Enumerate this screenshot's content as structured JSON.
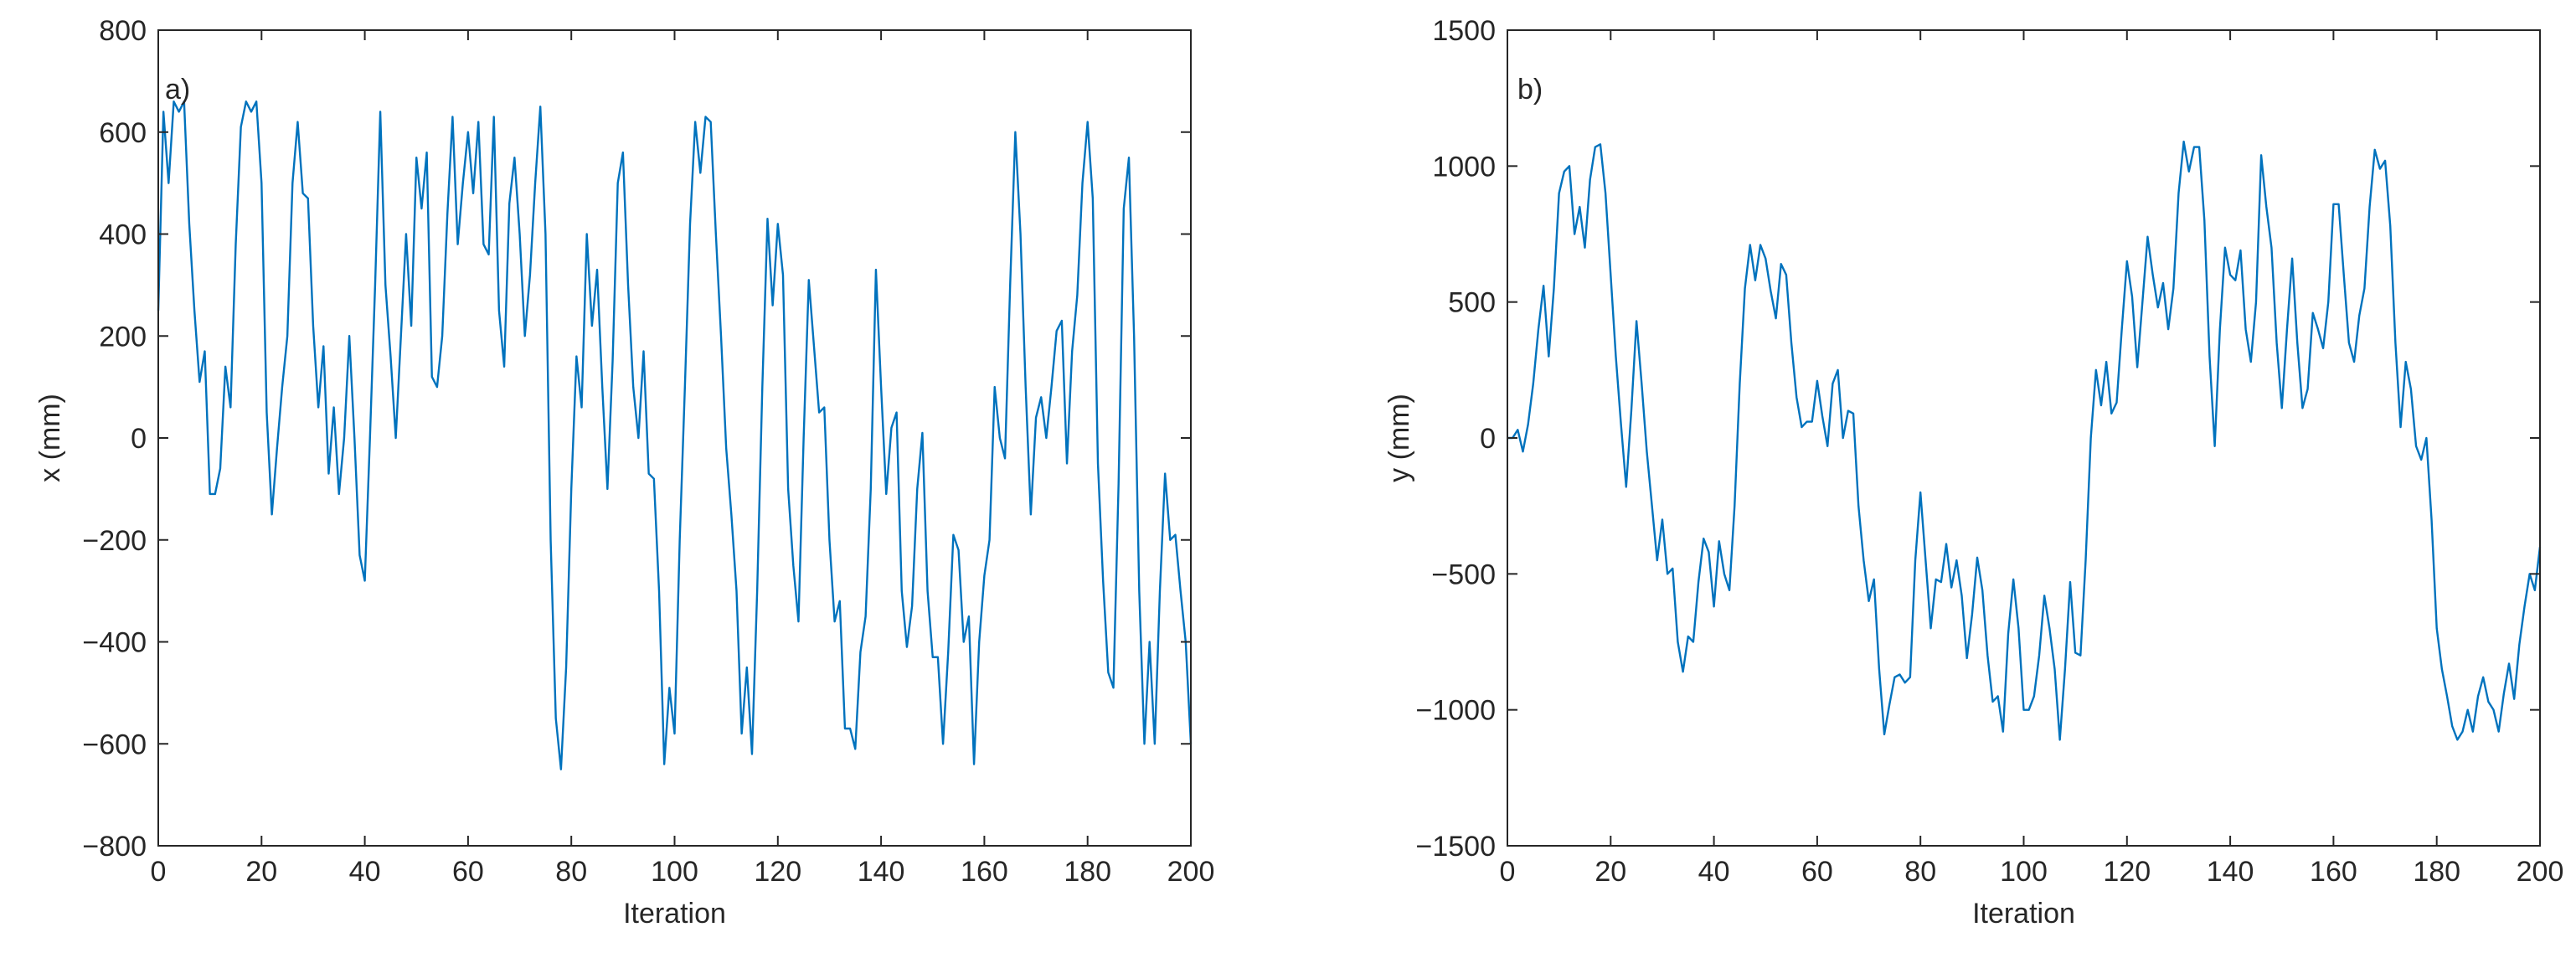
{
  "chart_data": [
    {
      "type": "line",
      "annotation": "a)",
      "xlabel": "Iteration",
      "ylabel": "x (mm)",
      "xlim": [
        0,
        200
      ],
      "xticks": [
        0,
        20,
        40,
        60,
        80,
        100,
        120,
        140,
        160,
        180,
        200
      ],
      "ylim": [
        -800,
        800
      ],
      "yticks": [
        {
          "value": -800,
          "label": "−800"
        },
        {
          "value": -600,
          "label": "−600"
        },
        {
          "value": -400,
          "label": "−400"
        },
        {
          "value": -200,
          "label": "−200"
        },
        0,
        200,
        400,
        600,
        800
      ],
      "grid": false,
      "x": [
        0,
        1,
        2,
        3,
        4,
        5,
        6,
        7,
        8,
        9,
        10,
        11,
        12,
        13,
        14,
        15,
        16,
        17,
        18,
        19,
        20,
        21,
        22,
        23,
        24,
        25,
        26,
        27,
        28,
        29,
        30,
        31,
        32,
        33,
        34,
        35,
        36,
        37,
        38,
        39,
        40,
        41,
        42,
        43,
        44,
        45,
        46,
        47,
        48,
        49,
        50,
        51,
        52,
        53,
        54,
        55,
        56,
        57,
        58,
        59,
        60,
        61,
        62,
        63,
        64,
        65,
        66,
        67,
        68,
        69,
        70,
        71,
        72,
        73,
        74,
        75,
        76,
        77,
        78,
        79,
        80,
        81,
        82,
        83,
        84,
        85,
        86,
        87,
        88,
        89,
        90,
        91,
        92,
        93,
        94,
        95,
        96,
        97,
        98,
        99,
        100,
        101,
        102,
        103,
        104,
        105,
        106,
        107,
        108,
        109,
        110,
        111,
        112,
        113,
        114,
        115,
        116,
        117,
        118,
        119,
        120,
        121,
        122,
        123,
        124,
        125,
        126,
        127,
        128,
        129,
        130,
        131,
        132,
        133,
        134,
        135,
        136,
        137,
        138,
        139,
        140,
        141,
        142,
        143,
        144,
        145,
        146,
        147,
        148,
        149,
        150,
        151,
        152,
        153,
        154,
        155,
        156,
        157,
        158,
        159,
        160,
        161,
        162,
        163,
        164,
        165,
        166,
        167,
        168,
        169,
        170,
        171,
        172,
        173,
        174,
        175,
        176,
        177,
        178,
        179,
        180,
        181,
        182,
        183,
        184,
        185,
        186,
        187,
        188,
        189,
        190,
        191,
        192,
        193,
        194,
        195,
        196,
        197,
        198,
        199,
        200
      ],
      "series": [
        {
          "color": "#0072bd",
          "values": [
            250,
            640,
            500,
            660,
            640,
            660,
            420,
            250,
            110,
            170,
            -110,
            -110,
            -60,
            140,
            60,
            380,
            610,
            660,
            640,
            660,
            500,
            50,
            -150,
            -20,
            100,
            200,
            500,
            620,
            480,
            470,
            220,
            60,
            180,
            -70,
            60,
            -110,
            0,
            200,
            0,
            -230,
            -280,
            0,
            300,
            640,
            300,
            160,
            0,
            200,
            400,
            220,
            550,
            450,
            560,
            120,
            100,
            200,
            440,
            630,
            380,
            500,
            600,
            480,
            620,
            380,
            360,
            630,
            250,
            140,
            460,
            550,
            400,
            200,
            320,
            500,
            650,
            400,
            -200,
            -550,
            -650,
            -450,
            -100,
            160,
            60,
            400,
            220,
            330,
            100,
            -100,
            150,
            500,
            560,
            300,
            100,
            0,
            170,
            -70,
            -80,
            -300,
            -640,
            -490,
            -580,
            -200,
            100,
            420,
            620,
            520,
            630,
            620,
            400,
            200,
            -20,
            -150,
            -300,
            -580,
            -450,
            -620,
            -300,
            100,
            430,
            260,
            420,
            320,
            -100,
            -250,
            -360,
            0,
            310,
            180,
            50,
            60,
            -200,
            -360,
            -320,
            -570,
            -570,
            -610,
            -420,
            -350,
            -100,
            330,
            100,
            -110,
            20,
            50,
            -300,
            -410,
            -330,
            -100,
            10,
            -300,
            -430,
            -430,
            -600,
            -420,
            -190,
            -220,
            -400,
            -350,
            -640,
            -400,
            -270,
            -200,
            100,
            0,
            -40,
            300,
            600,
            400,
            100,
            -150,
            40,
            80,
            0,
            100,
            210,
            230,
            -50,
            170,
            280,
            500,
            620,
            470,
            -50,
            -280,
            -460,
            -490,
            -90,
            450,
            550,
            200,
            -300,
            -600,
            -400,
            -600,
            -300,
            -70,
            -200,
            -190,
            -300,
            -400,
            -600
          ]
        }
      ]
    },
    {
      "type": "line",
      "annotation": "b)",
      "xlabel": "Iteration",
      "ylabel": "y (mm)",
      "xlim": [
        0,
        200
      ],
      "xticks": [
        0,
        20,
        40,
        60,
        80,
        100,
        120,
        140,
        160,
        180,
        200
      ],
      "ylim": [
        -1500,
        1500
      ],
      "yticks": [
        {
          "value": -1500,
          "label": "−1500"
        },
        {
          "value": -1000,
          "label": "−1000"
        },
        {
          "value": -500,
          "label": "−500"
        },
        0,
        500,
        1000,
        1500
      ],
      "grid": false,
      "x": [
        0,
        1,
        2,
        3,
        4,
        5,
        6,
        7,
        8,
        9,
        10,
        11,
        12,
        13,
        14,
        15,
        16,
        17,
        18,
        19,
        20,
        21,
        22,
        23,
        24,
        25,
        26,
        27,
        28,
        29,
        30,
        31,
        32,
        33,
        34,
        35,
        36,
        37,
        38,
        39,
        40,
        41,
        42,
        43,
        44,
        45,
        46,
        47,
        48,
        49,
        50,
        51,
        52,
        53,
        54,
        55,
        56,
        57,
        58,
        59,
        60,
        61,
        62,
        63,
        64,
        65,
        66,
        67,
        68,
        69,
        70,
        71,
        72,
        73,
        74,
        75,
        76,
        77,
        78,
        79,
        80,
        81,
        82,
        83,
        84,
        85,
        86,
        87,
        88,
        89,
        90,
        91,
        92,
        93,
        94,
        95,
        96,
        97,
        98,
        99,
        100,
        101,
        102,
        103,
        104,
        105,
        106,
        107,
        108,
        109,
        110,
        111,
        112,
        113,
        114,
        115,
        116,
        117,
        118,
        119,
        120,
        121,
        122,
        123,
        124,
        125,
        126,
        127,
        128,
        129,
        130,
        131,
        132,
        133,
        134,
        135,
        136,
        137,
        138,
        139,
        140,
        141,
        142,
        143,
        144,
        145,
        146,
        147,
        148,
        149,
        150,
        151,
        152,
        153,
        154,
        155,
        156,
        157,
        158,
        159,
        160,
        161,
        162,
        163,
        164,
        165,
        166,
        167,
        168,
        169,
        170,
        171,
        172,
        173,
        174,
        175,
        176,
        177,
        178,
        179,
        180,
        181,
        182,
        183,
        184,
        185,
        186,
        187,
        188,
        189,
        190,
        191,
        192,
        193,
        194,
        195,
        196,
        197,
        198,
        199,
        200
      ],
      "series": [
        {
          "color": "#0072bd",
          "values": [
            0,
            0,
            30,
            -50,
            50,
            200,
            400,
            560,
            300,
            550,
            900,
            980,
            1000,
            750,
            850,
            700,
            950,
            1070,
            1080,
            900,
            600,
            300,
            50,
            -180,
            100,
            430,
            200,
            -50,
            -250,
            -450,
            -300,
            -500,
            -480,
            -750,
            -860,
            -730,
            -750,
            -530,
            -370,
            -420,
            -620,
            -380,
            -500,
            -560,
            -250,
            200,
            550,
            710,
            580,
            710,
            660,
            540,
            440,
            640,
            600,
            350,
            150,
            40,
            60,
            60,
            210,
            80,
            -30,
            200,
            250,
            0,
            100,
            90,
            -250,
            -450,
            -600,
            -520,
            -850,
            -1090,
            -980,
            -880,
            -870,
            -900,
            -880,
            -450,
            -200,
            -450,
            -700,
            -520,
            -530,
            -390,
            -550,
            -450,
            -580,
            -810,
            -650,
            -440,
            -560,
            -800,
            -970,
            -950,
            -1080,
            -720,
            -520,
            -700,
            -1000,
            -1000,
            -950,
            -800,
            -580,
            -700,
            -850,
            -1110,
            -850,
            -530,
            -790,
            -800,
            -450,
            0,
            250,
            120,
            280,
            90,
            130,
            400,
            650,
            520,
            260,
            500,
            740,
            600,
            480,
            570,
            400,
            550,
            900,
            1090,
            980,
            1070,
            1070,
            800,
            300,
            -30,
            400,
            700,
            600,
            580,
            690,
            400,
            280,
            500,
            1040,
            850,
            700,
            350,
            110,
            400,
            660,
            350,
            110,
            180,
            460,
            400,
            330,
            500,
            860,
            860,
            600,
            350,
            280,
            450,
            550,
            850,
            1060,
            990,
            1020,
            780,
            350,
            40,
            280,
            180,
            -30,
            -80,
            0,
            -300,
            -700,
            -850,
            -950,
            -1060,
            -1110,
            -1080,
            -1000,
            -1080,
            -950,
            -880,
            -970,
            -1000,
            -1080,
            -940,
            -830,
            -960,
            -760,
            -620,
            -500,
            -560,
            -400
          ]
        }
      ]
    }
  ]
}
